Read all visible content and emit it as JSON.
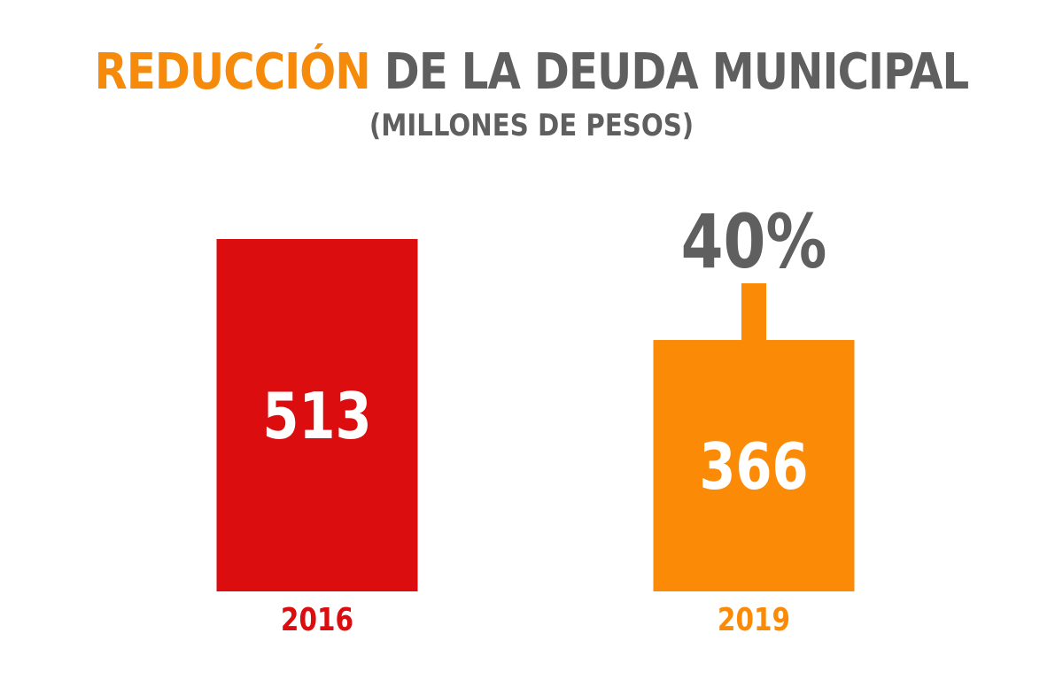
{
  "title": {
    "accent": "REDUCCIÓN",
    "rest": " DE LA DEUDA MUNICIPAL"
  },
  "subtitle": "(MILLONES DE PESOS)",
  "colors": {
    "bar_2016": "#dc0d0f",
    "bar_2019": "#fb8a07",
    "text_gray": "#5f5f5f",
    "accent": "#f58a0b"
  },
  "chart_data": {
    "type": "bar",
    "categories": [
      "2016",
      "2019"
    ],
    "values": [
      513,
      366
    ],
    "annotation": {
      "text": "40%",
      "icon": "down-arrow-icon",
      "target_category": "2019"
    },
    "title": "REDUCCIÓN DE LA DEUDA MUNICIPAL",
    "subtitle": "(MILLONES DE PESOS)",
    "grid": false,
    "legend": "none"
  }
}
